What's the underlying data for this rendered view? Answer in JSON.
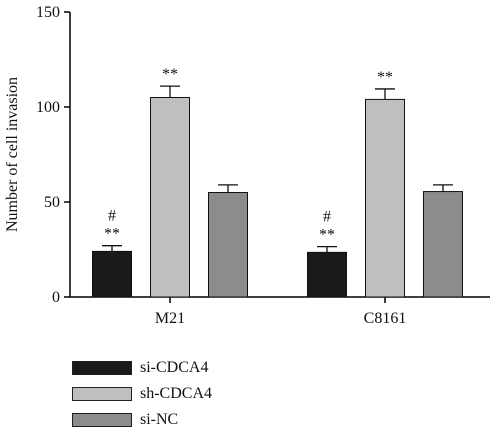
{
  "chart_data": {
    "type": "bar",
    "ylabel": "Number of cell invasion",
    "ylim": [
      0,
      150
    ],
    "yticks": [
      0,
      50,
      100,
      150
    ],
    "categories": [
      "M21",
      "C8161"
    ],
    "series": [
      {
        "name": "si-CDCA4",
        "color": "#1a1a1a",
        "values": [
          24,
          23.5
        ],
        "errors": [
          3,
          3
        ],
        "annotations": [
          [
            "#",
            "**"
          ],
          [
            "#",
            "**"
          ]
        ]
      },
      {
        "name": "sh-CDCA4",
        "color": "#bfbfbf",
        "values": [
          105,
          104
        ],
        "errors": [
          6,
          5.5
        ],
        "annotations": [
          [
            "**"
          ],
          [
            "**"
          ]
        ]
      },
      {
        "name": "si-NC",
        "color": "#8c8c8c",
        "values": [
          55,
          55.5
        ],
        "errors": [
          4,
          3.5
        ],
        "annotations": [
          [],
          []
        ]
      }
    ],
    "legend_position": "bottom-left"
  }
}
